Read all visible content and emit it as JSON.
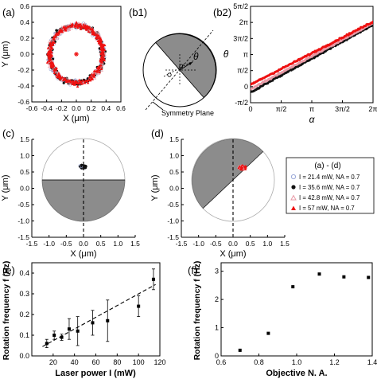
{
  "panels": {
    "a": {
      "label": "(a)",
      "xlabel": "X (μm)",
      "ylabel": "Y (μm)",
      "xticks": [
        "-0.6",
        "-0.4",
        "-0.2",
        "0.0",
        "0.2",
        "0.4",
        "0.6"
      ],
      "yticks": [
        "-0.6",
        "-0.4",
        "-0.2",
        "0.0",
        "0.2",
        "0.4",
        "0.6"
      ]
    },
    "b1": {
      "label": "(b1)",
      "theta_label": "θ",
      "alpha_label": "α",
      "symmetry_label": "Symmetry Plane"
    },
    "b2": {
      "label": "(b2)",
      "xlabel": "α",
      "ylabel": "θ",
      "xticks": [
        "0",
        "π/2",
        "π",
        "3π/2",
        "2π"
      ],
      "yticks": [
        "-π/2",
        "0",
        "π/2",
        "π",
        "3π/2",
        "2π",
        "5π/2"
      ]
    },
    "c": {
      "label": "(c)",
      "xlabel": "X (μm)",
      "ylabel": "Y (μm)",
      "xticks": [
        "-1.5",
        "-1.0",
        "-0.5",
        "0.0",
        "0.5",
        "1.0",
        "1.5"
      ],
      "yticks": [
        "-1.5",
        "-1.0",
        "-0.5",
        "0.0",
        "0.5",
        "1.0",
        "1.5"
      ]
    },
    "d": {
      "label": "(d)",
      "xlabel": "X (μm)",
      "ylabel": "Y (μm)",
      "xticks": [
        "-1.5",
        "-1.0",
        "-0.5",
        "0.0",
        "0.5",
        "1.0",
        "1.5"
      ],
      "yticks": [
        "-1.5",
        "-1.0",
        "-0.5",
        "0.0",
        "0.5",
        "1.0",
        "1.5"
      ]
    },
    "e": {
      "label": "(e)",
      "xlabel": "Laser power I (mW)",
      "ylabel": "Rotation frequency f (Hz)",
      "xticks": [
        "20",
        "40",
        "60",
        "80",
        "100",
        "120"
      ],
      "yticks": [
        "0.0",
        "0.1",
        "0.2",
        "0.3",
        "0.4"
      ]
    },
    "f": {
      "label": "(f)",
      "xlabel": "Objective N. A.",
      "ylabel": "Rotation frequency f (Hz)",
      "xticks": [
        "0.6",
        "0.8",
        "1.0",
        "1.2",
        "1.4"
      ],
      "yticks": [
        "0",
        "1",
        "2",
        "3"
      ]
    }
  },
  "legend": {
    "title": "(a) - (d)",
    "entries": [
      "I = 21.4 mW, NA = 0.7",
      "I = 35.6 mW, NA = 0.7",
      "I = 42.8 mW, NA = 0.7",
      "I = 57 mW, NA = 0.7"
    ]
  },
  "colors": {
    "black_series": "#111111",
    "red_series": "#ee1111",
    "pink_series": "#e89aa6",
    "blue_open": "#9aa8d8",
    "shaded_half": "#8c8c8c"
  },
  "chart_data": [
    {
      "panel": "a",
      "type": "scatter",
      "shape": "ring",
      "ring_radius_um": 0.36,
      "ring_width_um": 0.1,
      "center_marker": [
        0.0,
        0.0
      ],
      "xlim": [
        -0.6,
        0.6
      ],
      "ylim": [
        -0.6,
        0.6
      ]
    },
    {
      "panel": "b2",
      "type": "line",
      "xlim": [
        0,
        6.2832
      ],
      "ylim": [
        -1.5708,
        7.854
      ],
      "series": [
        {
          "x": [
            0,
            6.2832
          ],
          "y": [
            -0.55,
            6.05
          ]
        },
        {
          "x": [
            0,
            6.2832
          ],
          "y": [
            -0.25,
            6.2
          ]
        },
        {
          "x": [
            0,
            6.2832
          ],
          "y": [
            0.2,
            6.35
          ]
        }
      ]
    },
    {
      "panel": "c",
      "type": "scatter",
      "xlim": [
        -1.5,
        1.5
      ],
      "ylim": [
        -1.5,
        1.5
      ],
      "cluster_center": [
        -0.02,
        0.32
      ],
      "cluster_spread": [
        0.12,
        0.06
      ]
    },
    {
      "panel": "d",
      "type": "scatter",
      "xlim": [
        -1.5,
        1.5
      ],
      "ylim": [
        -1.5,
        1.5
      ],
      "cluster_center": [
        0.22,
        0.3
      ],
      "cluster_spread": [
        0.14,
        0.07
      ]
    },
    {
      "panel": "e",
      "type": "scatter",
      "xlim": [
        0,
        120
      ],
      "ylim": [
        0.0,
        0.45
      ],
      "x": [
        14,
        21,
        28,
        35,
        43,
        57,
        71,
        100,
        114
      ],
      "y": [
        0.06,
        0.1,
        0.09,
        0.13,
        0.12,
        0.16,
        0.17,
        0.24,
        0.37
      ],
      "yerr": [
        0.02,
        0.02,
        0.015,
        0.05,
        0.07,
        0.06,
        0.1,
        0.05,
        0.05
      ],
      "fit": {
        "x": [
          10,
          116
        ],
        "y": [
          0.045,
          0.345
        ]
      }
    },
    {
      "panel": "f",
      "type": "scatter",
      "xlim": [
        0.6,
        1.4
      ],
      "ylim": [
        0,
        3.3
      ],
      "x": [
        0.7,
        0.85,
        0.98,
        1.12,
        1.25,
        1.38
      ],
      "y": [
        0.2,
        0.8,
        2.45,
        2.9,
        2.8,
        2.78
      ]
    }
  ]
}
